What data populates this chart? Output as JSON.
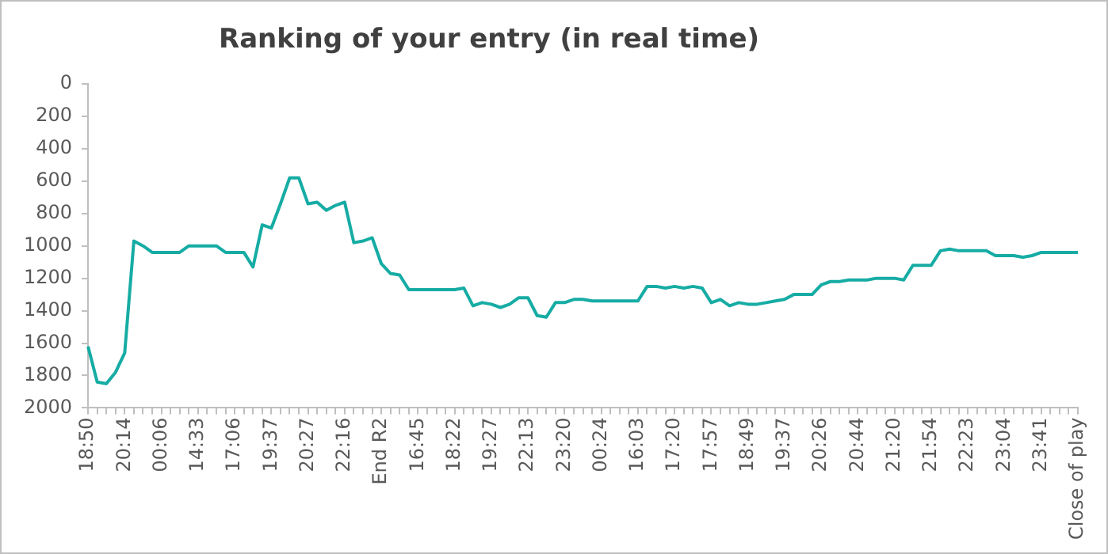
{
  "chart_data": {
    "type": "line",
    "title": "Ranking of your entry (in real time)",
    "categories": [
      "18:50",
      null,
      null,
      null,
      "20:14",
      null,
      null,
      null,
      "00:06",
      null,
      null,
      null,
      "14:33",
      null,
      null,
      null,
      "17:06",
      null,
      null,
      null,
      "19:37",
      null,
      null,
      null,
      "20:27",
      null,
      null,
      null,
      "22:16",
      null,
      null,
      null,
      "End R2",
      null,
      null,
      null,
      "16:45",
      null,
      null,
      null,
      "18:22",
      null,
      null,
      null,
      "19:27",
      null,
      null,
      null,
      "22:13",
      null,
      null,
      null,
      "23:20",
      null,
      null,
      null,
      "00:24",
      null,
      null,
      null,
      "16:03",
      null,
      null,
      null,
      "17:20",
      null,
      null,
      null,
      "17:57",
      null,
      null,
      null,
      "18:49",
      null,
      null,
      null,
      "19:37",
      null,
      null,
      null,
      "20:26",
      null,
      null,
      null,
      "20:44",
      null,
      null,
      null,
      "21:20",
      null,
      null,
      null,
      "21:54",
      null,
      null,
      null,
      "22:23",
      null,
      null,
      null,
      "23:04",
      null,
      null,
      null,
      "23:41",
      null,
      null,
      null,
      "Close of play"
    ],
    "series": [
      {
        "color": "#16aca4",
        "values": [
          1620,
          1840,
          1850,
          1780,
          1660,
          970,
          1000,
          1040,
          1040,
          1040,
          1040,
          1000,
          1000,
          1000,
          1000,
          1040,
          1040,
          1040,
          1130,
          870,
          890,
          740,
          580,
          580,
          740,
          730,
          780,
          750,
          730,
          980,
          970,
          950,
          1110,
          1170,
          1180,
          1270,
          1270,
          1270,
          1270,
          1270,
          1270,
          1260,
          1370,
          1350,
          1360,
          1380,
          1360,
          1320,
          1320,
          1430,
          1440,
          1350,
          1350,
          1330,
          1330,
          1340,
          1340,
          1340,
          1340,
          1340,
          1340,
          1250,
          1250,
          1260,
          1250,
          1260,
          1250,
          1260,
          1350,
          1330,
          1370,
          1350,
          1360,
          1360,
          1350,
          1340,
          1330,
          1300,
          1300,
          1300,
          1240,
          1220,
          1220,
          1210,
          1210,
          1210,
          1200,
          1200,
          1200,
          1210,
          1120,
          1120,
          1120,
          1030,
          1020,
          1030,
          1030,
          1030,
          1030,
          1060,
          1060,
          1060,
          1070,
          1060,
          1040,
          1040,
          1040,
          1040,
          1040
        ]
      }
    ],
    "ylim": [
      2000,
      0
    ],
    "yticks": [
      0,
      200,
      400,
      600,
      800,
      1000,
      1200,
      1400,
      1600,
      1800,
      2000
    ],
    "marker": "none",
    "line_style": "solid",
    "legend": false
  }
}
